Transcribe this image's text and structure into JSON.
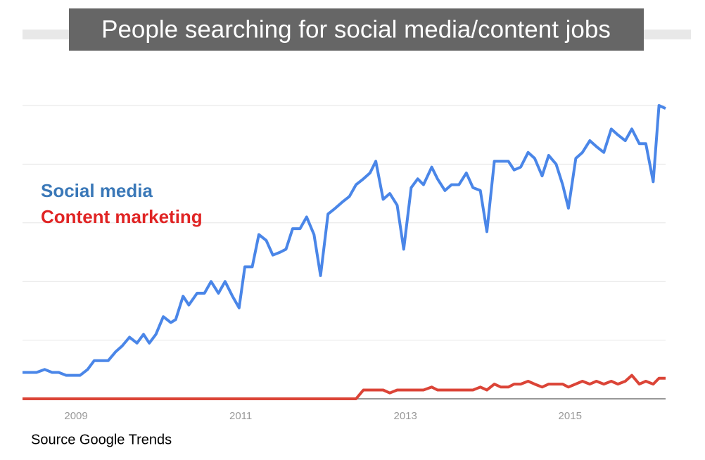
{
  "chart_data": {
    "type": "line",
    "title": "People searching for social media/content jobs",
    "source": "Source Google Trends",
    "xlim": [
      2008.35,
      2016.16
    ],
    "xticks": [
      2009,
      2011,
      2013,
      2015
    ],
    "ylim": [
      0,
      100
    ],
    "yticks": [
      0,
      20,
      40,
      60,
      80,
      100
    ],
    "grid": true,
    "series": [
      {
        "name": "Social media",
        "color": "#4a86e8",
        "legend_color": "#3a78b8",
        "x": [
          2008.35,
          2008.52,
          2008.62,
          2008.71,
          2008.79,
          2008.88,
          2009.05,
          2009.14,
          2009.22,
          2009.39,
          2009.48,
          2009.56,
          2009.65,
          2009.74,
          2009.82,
          2009.89,
          2009.97,
          2010.06,
          2010.15,
          2010.21,
          2010.3,
          2010.37,
          2010.47,
          2010.56,
          2010.64,
          2010.73,
          2010.81,
          2010.9,
          2010.98,
          2011.05,
          2011.14,
          2011.22,
          2011.31,
          2011.39,
          2011.48,
          2011.55,
          2011.63,
          2011.72,
          2011.8,
          2011.89,
          2011.97,
          2012.06,
          2012.15,
          2012.23,
          2012.32,
          2012.4,
          2012.49,
          2012.57,
          2012.64,
          2012.73,
          2012.81,
          2012.9,
          2012.98,
          2013.07,
          2013.15,
          2013.22,
          2013.32,
          2013.39,
          2013.48,
          2013.56,
          2013.65,
          2013.74,
          2013.82,
          2013.91,
          2013.99,
          2014.08,
          2014.16,
          2014.25,
          2014.32,
          2014.4,
          2014.49,
          2014.57,
          2014.66,
          2014.74,
          2014.83,
          2014.91,
          2014.98,
          2015.07,
          2015.15,
          2015.24,
          2015.32,
          2015.41,
          2015.5,
          2015.58,
          2015.67,
          2015.75,
          2015.84,
          2015.92,
          2016.01,
          2016.08,
          2016.16
        ],
        "values": [
          9,
          9,
          10,
          9,
          9,
          8,
          8,
          10,
          13,
          13,
          16,
          18,
          21,
          19,
          22,
          19,
          22,
          28,
          26,
          27,
          35,
          32,
          36,
          36,
          40,
          36,
          40,
          35,
          31,
          45,
          45,
          56,
          54,
          49,
          50,
          51,
          58,
          58,
          62,
          56,
          42,
          63,
          65,
          67,
          69,
          73,
          75,
          77,
          81,
          68,
          70,
          66,
          51,
          72,
          75,
          73,
          79,
          75,
          71,
          73,
          73,
          77,
          72,
          71,
          57,
          81,
          81,
          81,
          78,
          79,
          84,
          82,
          76,
          83,
          80,
          73,
          65,
          82,
          84,
          88,
          86,
          84,
          92,
          90,
          88,
          92,
          87,
          87,
          74,
          100,
          99
        ]
      },
      {
        "name": "Content marketing",
        "color": "#db4437",
        "legend_color": "#e02424",
        "x": [
          2008.35,
          2012.4,
          2012.49,
          2012.73,
          2012.81,
          2012.9,
          2013.22,
          2013.32,
          2013.39,
          2013.82,
          2013.91,
          2013.99,
          2014.08,
          2014.16,
          2014.25,
          2014.32,
          2014.4,
          2014.49,
          2014.57,
          2014.66,
          2014.74,
          2014.91,
          2014.98,
          2015.15,
          2015.24,
          2015.32,
          2015.41,
          2015.5,
          2015.58,
          2015.67,
          2015.75,
          2015.84,
          2015.92,
          2016.01,
          2016.08,
          2016.16
        ],
        "values": [
          0,
          0,
          3,
          3,
          2,
          3,
          3,
          4,
          3,
          3,
          4,
          3,
          5,
          4,
          4,
          5,
          5,
          6,
          5,
          4,
          5,
          5,
          4,
          6,
          5,
          6,
          5,
          6,
          5,
          6,
          8,
          5,
          6,
          5,
          7,
          7
        ]
      }
    ]
  }
}
